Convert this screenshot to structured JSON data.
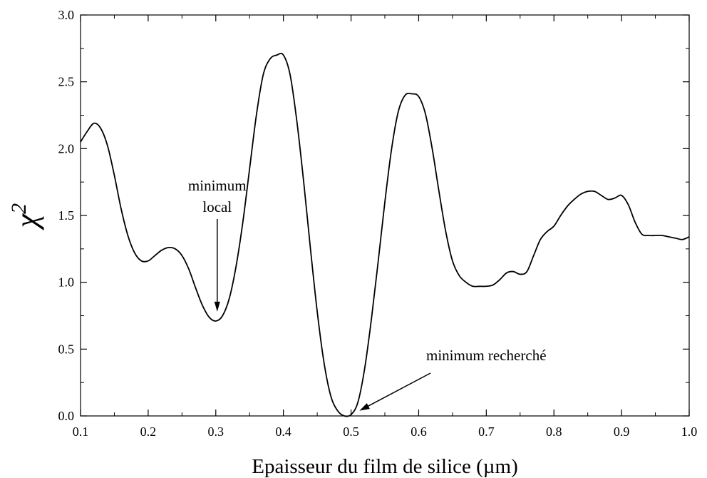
{
  "chart_data": {
    "type": "line",
    "title": "",
    "xlabel": "Epaisseur du film de silice (µm)",
    "ylabel": "χ",
    "ylabel_superscript": "2",
    "xlim": [
      0.1,
      1.0
    ],
    "ylim": [
      0.0,
      3.0
    ],
    "xticks": [
      "0.1",
      "0.2",
      "0.3",
      "0.4",
      "0.5",
      "0.6",
      "0.7",
      "0.8",
      "0.9",
      "1.0"
    ],
    "yticks": [
      "0.0",
      "0.5",
      "1.0",
      "1.5",
      "2.0",
      "2.5",
      "3.0"
    ],
    "grid": false,
    "legend": "none",
    "line_color": "#000000",
    "series": [
      {
        "x": [
          0.1,
          0.11,
          0.12,
          0.13,
          0.14,
          0.15,
          0.16,
          0.17,
          0.18,
          0.19,
          0.2,
          0.21,
          0.22,
          0.23,
          0.24,
          0.25,
          0.26,
          0.27,
          0.28,
          0.29,
          0.3,
          0.31,
          0.32,
          0.33,
          0.34,
          0.35,
          0.36,
          0.37,
          0.38,
          0.39,
          0.4,
          0.41,
          0.42,
          0.43,
          0.44,
          0.45,
          0.46,
          0.47,
          0.48,
          0.49,
          0.5,
          0.51,
          0.52,
          0.53,
          0.54,
          0.55,
          0.56,
          0.57,
          0.58,
          0.59,
          0.6,
          0.61,
          0.62,
          0.63,
          0.64,
          0.65,
          0.66,
          0.67,
          0.68,
          0.69,
          0.7,
          0.71,
          0.72,
          0.73,
          0.74,
          0.75,
          0.76,
          0.77,
          0.78,
          0.79,
          0.8,
          0.81,
          0.82,
          0.83,
          0.84,
          0.85,
          0.86,
          0.87,
          0.88,
          0.89,
          0.9,
          0.91,
          0.92,
          0.93,
          0.94,
          0.95,
          0.96,
          0.97,
          0.98,
          0.99,
          1.0
        ],
        "y": [
          2.05,
          2.13,
          2.19,
          2.15,
          2.02,
          1.8,
          1.55,
          1.35,
          1.22,
          1.16,
          1.16,
          1.2,
          1.24,
          1.26,
          1.25,
          1.2,
          1.1,
          0.96,
          0.83,
          0.74,
          0.71,
          0.75,
          0.88,
          1.12,
          1.45,
          1.85,
          2.25,
          2.55,
          2.67,
          2.7,
          2.7,
          2.55,
          2.2,
          1.75,
          1.25,
          0.78,
          0.4,
          0.15,
          0.04,
          0.0,
          0.01,
          0.1,
          0.35,
          0.72,
          1.15,
          1.6,
          2.0,
          2.28,
          2.4,
          2.41,
          2.39,
          2.26,
          2.0,
          1.68,
          1.38,
          1.16,
          1.05,
          1.0,
          0.97,
          0.97,
          0.97,
          0.98,
          1.02,
          1.07,
          1.08,
          1.06,
          1.08,
          1.2,
          1.32,
          1.38,
          1.42,
          1.5,
          1.57,
          1.62,
          1.66,
          1.68,
          1.68,
          1.65,
          1.62,
          1.63,
          1.65,
          1.58,
          1.45,
          1.36,
          1.35,
          1.35,
          1.35,
          1.34,
          1.33,
          1.32,
          1.34
        ]
      }
    ],
    "annotations": [
      {
        "lines": [
          "minimum",
          "local"
        ],
        "target_x": 0.3,
        "target_y": 0.78
      },
      {
        "lines": [
          "minimum recherché"
        ],
        "target_x": 0.502,
        "target_y": 0.05
      }
    ]
  }
}
